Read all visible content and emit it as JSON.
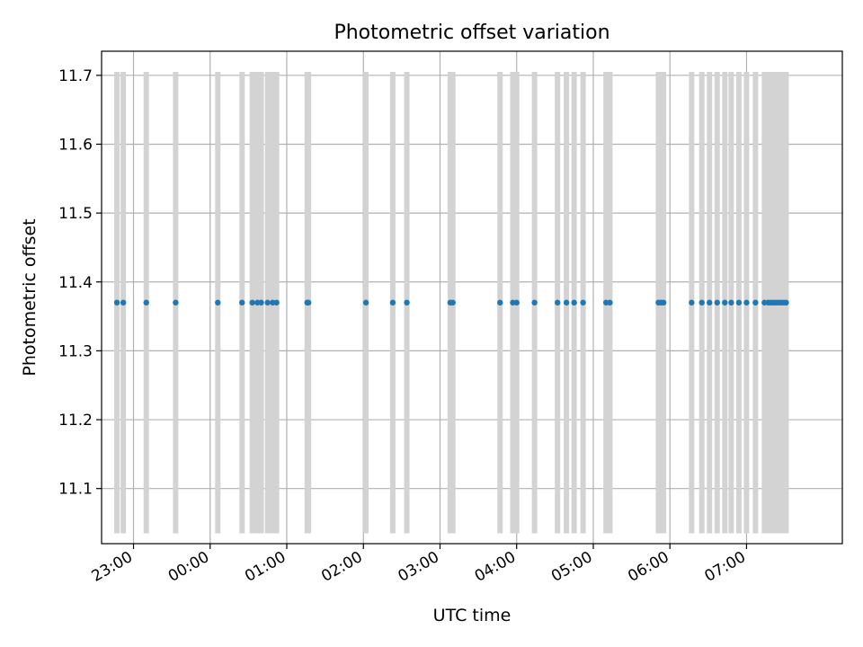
{
  "chart_data": {
    "type": "scatter",
    "title": "Photometric offset variation",
    "xlabel": "UTC time",
    "ylabel": "Photometric offset",
    "x_ticks": [
      "23:00",
      "00:00",
      "01:00",
      "02:00",
      "03:00",
      "04:00",
      "05:00",
      "06:00",
      "07:00"
    ],
    "y_ticks": [
      "11.1",
      "11.2",
      "11.3",
      "11.4",
      "11.5",
      "11.6",
      "11.7"
    ],
    "y_tick_values": [
      11.1,
      11.2,
      11.3,
      11.4,
      11.5,
      11.6,
      11.7
    ],
    "xlim": [
      "22:35",
      "08:15"
    ],
    "ylim": [
      11.02,
      11.735
    ],
    "grid": true,
    "error_bar_range": [
      11.035,
      11.705
    ],
    "series": [
      {
        "color": "#1f77b4",
        "error_bar_color": "#d3d3d3",
        "x": [
          "22:47",
          "22:52",
          "23:10",
          "23:33",
          "00:06",
          "00:25",
          "00:33",
          "00:37",
          "00:40",
          "00:45",
          "00:49",
          "00:52",
          "01:16",
          "01:17",
          "02:02",
          "02:23",
          "02:34",
          "03:08",
          "03:10",
          "03:47",
          "03:57",
          "04:00",
          "04:14",
          "04:32",
          "04:39",
          "04:45",
          "04:52",
          "05:10",
          "05:13",
          "05:51",
          "05:53",
          "05:55",
          "06:17",
          "06:25",
          "06:31",
          "06:37",
          "06:43",
          "06:48",
          "06:54",
          "07:00",
          "07:07",
          "07:14",
          "07:17",
          "07:19",
          "07:21",
          "07:23",
          "07:25",
          "07:27",
          "07:29",
          "07:31"
        ],
        "y": [
          11.37,
          11.37,
          11.37,
          11.37,
          11.37,
          11.37,
          11.37,
          11.37,
          11.37,
          11.37,
          11.37,
          11.37,
          11.37,
          11.37,
          11.37,
          11.37,
          11.37,
          11.37,
          11.37,
          11.37,
          11.37,
          11.37,
          11.37,
          11.37,
          11.37,
          11.37,
          11.37,
          11.37,
          11.37,
          11.37,
          11.37,
          11.37,
          11.37,
          11.37,
          11.37,
          11.37,
          11.37,
          11.37,
          11.37,
          11.37,
          11.37,
          11.37,
          11.37,
          11.37,
          11.37,
          11.37,
          11.37,
          11.37,
          11.37,
          11.37
        ]
      }
    ]
  }
}
